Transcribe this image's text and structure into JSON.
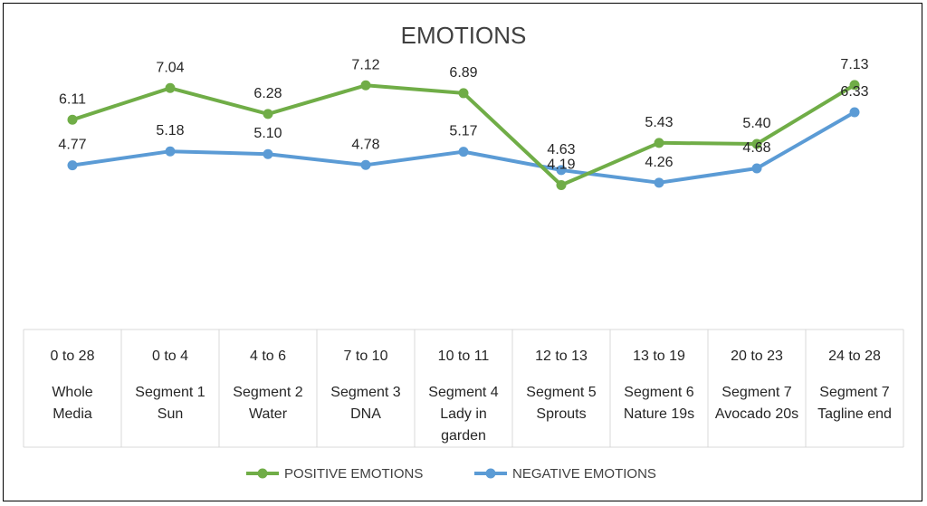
{
  "chart_data": {
    "type": "line",
    "title": "EMOTIONS",
    "categories": [
      {
        "range": "0 to 28",
        "label_lines": [
          "Whole",
          "Media"
        ]
      },
      {
        "range": "0 to 4",
        "label_lines": [
          "Segment 1",
          "Sun"
        ]
      },
      {
        "range": "4 to 6",
        "label_lines": [
          "Segment 2",
          "Water"
        ]
      },
      {
        "range": "7 to 10",
        "label_lines": [
          "Segment 3",
          "DNA"
        ]
      },
      {
        "range": "10 to 11",
        "label_lines": [
          "Segment 4",
          "Lady in",
          "garden"
        ]
      },
      {
        "range": "12 to 13",
        "label_lines": [
          "Segment 5",
          "Sprouts"
        ]
      },
      {
        "range": "13 to 19",
        "label_lines": [
          "Segment 6",
          "Nature 19s"
        ]
      },
      {
        "range": "20 to 23",
        "label_lines": [
          "Segment 7",
          "Avocado 20s"
        ]
      },
      {
        "range": "24 to 28",
        "label_lines": [
          "Segment 7",
          "Tagline end"
        ]
      }
    ],
    "series": [
      {
        "name": "POSITIVE EMOTIONS",
        "color": "#70ad47",
        "values": [
          6.11,
          7.04,
          6.28,
          7.12,
          6.89,
          4.19,
          5.43,
          5.4,
          7.13
        ],
        "labels": [
          "6.11",
          "7.04",
          "6.28",
          "7.12",
          "6.89",
          "4.19",
          "5.43",
          "5.40",
          "7.13"
        ]
      },
      {
        "name": "NEGATIVE EMOTIONS",
        "color": "#5b9bd5",
        "values": [
          4.77,
          5.18,
          5.1,
          4.78,
          5.17,
          4.63,
          4.26,
          4.68,
          6.33
        ],
        "labels": [
          "4.77",
          "5.18",
          "5.10",
          "4.78",
          "5.17",
          "4.63",
          "4.26",
          "4.68",
          "6.33"
        ]
      }
    ],
    "ylim": [
      0,
      9
    ],
    "grid": false,
    "legend": "bottom"
  }
}
